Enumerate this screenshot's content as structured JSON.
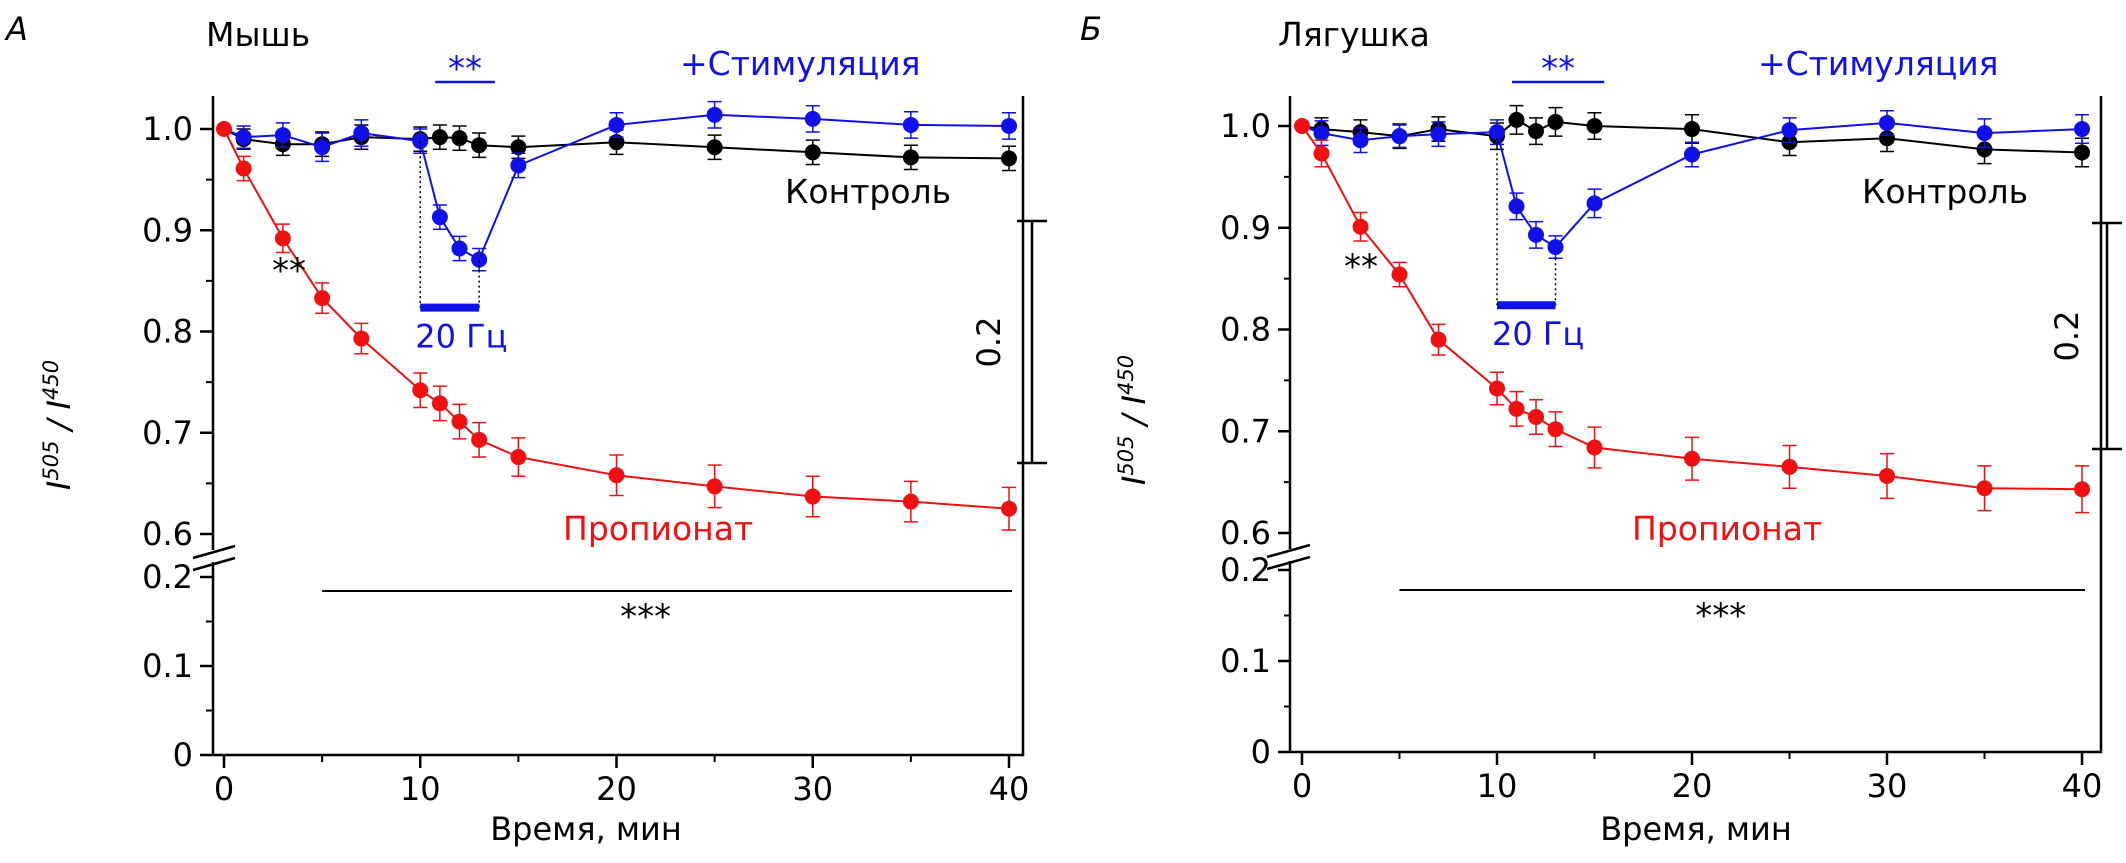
{
  "colors": {
    "control": "#000000",
    "stimulation": "#1010e8",
    "propionate": "#ee1111",
    "axis": "#000000"
  },
  "chart_data": [
    {
      "panel_label": "А",
      "title": "Мышь",
      "type": "line",
      "xlabel": "Время, мин",
      "ylabel_base": "I",
      "ylabel_sup1": "505",
      "ylabel_sep": " / ",
      "ylabel_sup2": "450",
      "xlim": [
        0,
        40
      ],
      "ylim_upper": [
        0.6,
        1.0
      ],
      "ylim_lower": [
        0,
        0.2
      ],
      "xticks": [
        "0",
        "10",
        "20",
        "30",
        "40"
      ],
      "yticks_upper": [
        "0.6",
        "0.7",
        "0.8",
        "0.9",
        "1.0"
      ],
      "yticks_lower": [
        "0",
        "0.1",
        "0.2"
      ],
      "series": [
        {
          "name": "Контроль",
          "color": "#000000",
          "x": [
            1,
            3,
            5,
            7,
            10,
            11,
            12,
            13,
            15,
            20,
            25,
            30,
            35,
            40
          ],
          "y": [
            0.99,
            0.985,
            0.985,
            0.992,
            0.99,
            0.992,
            0.991,
            0.984,
            0.982,
            0.987,
            0.982,
            0.977,
            0.972,
            0.971
          ],
          "err": [
            0.01,
            0.011,
            0.012,
            0.012,
            0.012,
            0.012,
            0.012,
            0.012,
            0.011,
            0.012,
            0.012,
            0.012,
            0.012,
            0.012
          ]
        },
        {
          "name": "+Стимуляция",
          "color": "#1010e8",
          "x": [
            1,
            3,
            5,
            7,
            10,
            11,
            12,
            13,
            15,
            20,
            25,
            30,
            35,
            40
          ],
          "y": [
            0.992,
            0.994,
            0.982,
            0.996,
            0.988,
            0.913,
            0.882,
            0.871,
            0.964,
            1.004,
            1.014,
            1.01,
            1.004,
            1.003
          ],
          "err": [
            0.011,
            0.012,
            0.014,
            0.013,
            0.012,
            0.012,
            0.012,
            0.011,
            0.012,
            0.012,
            0.013,
            0.013,
            0.013,
            0.013
          ]
        },
        {
          "name": "Пропионат",
          "color": "#ee1111",
          "x": [
            0,
            1,
            3,
            5,
            7,
            10,
            11,
            12,
            13,
            15,
            20,
            25,
            30,
            35,
            40
          ],
          "y": [
            1.0,
            0.961,
            0.892,
            0.833,
            0.793,
            0.742,
            0.729,
            0.711,
            0.693,
            0.676,
            0.658,
            0.647,
            0.637,
            0.632,
            0.625
          ],
          "err": [
            0,
            0.012,
            0.014,
            0.015,
            0.015,
            0.017,
            0.017,
            0.017,
            0.017,
            0.019,
            0.02,
            0.021,
            0.02,
            0.02,
            0.021
          ]
        }
      ],
      "labels": {
        "control": "Контроль",
        "stimulation": "+Стимуляция",
        "propionate": "Пропионат",
        "stim_freq": "20 Гц",
        "sig_stim": "**",
        "sig_early": "**",
        "sig_long": "***",
        "scale_bar": "0.2"
      },
      "stim_window": [
        10,
        13
      ],
      "sig_line_x": [
        5,
        40
      ]
    },
    {
      "panel_label": "Б",
      "title": "Лягушка",
      "type": "line",
      "xlabel": "Время, мин",
      "ylabel_base": "I",
      "ylabel_sup1": "505",
      "ylabel_sep": " / ",
      "ylabel_sup2": "450",
      "xlim": [
        0,
        40
      ],
      "ylim_upper": [
        0.6,
        1.0
      ],
      "ylim_lower": [
        0,
        0.2
      ],
      "xticks": [
        "0",
        "10",
        "20",
        "30",
        "40"
      ],
      "yticks_upper": [
        "0.6",
        "0.7",
        "0.8",
        "0.9",
        "1.0"
      ],
      "yticks_lower": [
        "0",
        "0.1",
        "0.2"
      ],
      "series": [
        {
          "name": "Контроль",
          "color": "#000000",
          "x": [
            1,
            3,
            5,
            7,
            10,
            11,
            12,
            13,
            15,
            20,
            25,
            30,
            35,
            40
          ],
          "y": [
            0.997,
            0.994,
            0.99,
            0.997,
            0.99,
            1.006,
            0.995,
            1.004,
            1.0,
            0.997,
            0.984,
            0.988,
            0.977,
            0.974
          ],
          "err": [
            0.011,
            0.012,
            0.012,
            0.012,
            0.013,
            0.014,
            0.013,
            0.014,
            0.013,
            0.014,
            0.013,
            0.013,
            0.014,
            0.014
          ]
        },
        {
          "name": "+Стимуляция",
          "color": "#1010e8",
          "x": [
            1,
            3,
            5,
            7,
            10,
            11,
            12,
            13,
            15,
            20,
            25,
            30,
            35,
            40
          ],
          "y": [
            0.993,
            0.986,
            0.99,
            0.992,
            0.994,
            0.921,
            0.893,
            0.881,
            0.924,
            0.972,
            0.996,
            1.003,
            0.993,
            0.997
          ],
          "err": [
            0.012,
            0.012,
            0.011,
            0.012,
            0.012,
            0.013,
            0.013,
            0.011,
            0.014,
            0.012,
            0.012,
            0.012,
            0.014,
            0.014
          ]
        },
        {
          "name": "Пропионат",
          "color": "#ee1111",
          "x": [
            0,
            1,
            3,
            5,
            7,
            10,
            11,
            12,
            13,
            15,
            20,
            25,
            30,
            35,
            40
          ],
          "y": [
            1.0,
            0.973,
            0.901,
            0.854,
            0.79,
            0.742,
            0.722,
            0.714,
            0.702,
            0.684,
            0.673,
            0.665,
            0.656,
            0.644,
            0.643
          ],
          "err": [
            0,
            0.013,
            0.014,
            0.012,
            0.015,
            0.016,
            0.017,
            0.017,
            0.017,
            0.02,
            0.021,
            0.021,
            0.022,
            0.022,
            0.023
          ]
        }
      ],
      "labels": {
        "control": "Контроль",
        "stimulation": "+Стимуляция",
        "propionate": "Пропионат",
        "stim_freq": "20 Гц",
        "sig_stim": "**",
        "sig_early": "**",
        "sig_long": "***",
        "scale_bar": "0.2"
      },
      "stim_window": [
        10,
        13
      ],
      "sig_line_x": [
        5,
        40
      ]
    }
  ]
}
